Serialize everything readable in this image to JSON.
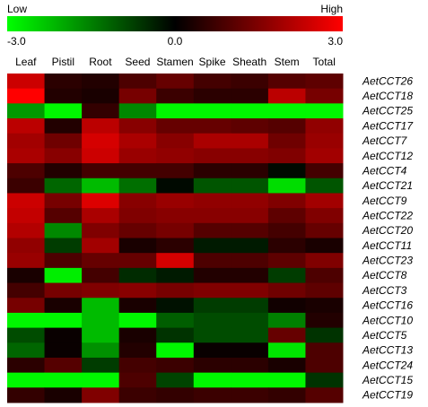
{
  "chart_data": {
    "type": "heatmap",
    "title": "",
    "legend": {
      "low_label": "Low",
      "high_label": "High",
      "ticks": [
        "-3.0",
        "0.0",
        "3.0"
      ],
      "range": [
        -3,
        3
      ],
      "colors": {
        "low": "#00ff00",
        "mid": "#000000",
        "high": "#ff0000"
      }
    },
    "columns": [
      "Leaf",
      "Pistil",
      "Root",
      "Seed",
      "Stamen",
      "Spike",
      "Sheath",
      "Stem",
      "Total"
    ],
    "col_spans": [
      1,
      1,
      1,
      1,
      1,
      1,
      1,
      1,
      1
    ],
    "rows": [
      "AetCCT26",
      "AetCCT18",
      "AetCCT25",
      "AetCCT17",
      "AetCCT7",
      "AetCCT12",
      "AetCCT4",
      "AetCCT21",
      "AetCCT9",
      "AetCCT22",
      "AetCCT20",
      "AetCCT11",
      "AetCCT23",
      "AetCCT8",
      "AetCCT3",
      "AetCCT16",
      "AetCCT10",
      "AetCCT5",
      "AetCCT13",
      "AetCCT24",
      "AetCCT15",
      "AetCCT19"
    ],
    "values": [
      [
        2.4,
        0.5,
        0.4,
        0.9,
        1.2,
        0.8,
        0.7,
        1.0,
        1.1
      ],
      [
        3.0,
        0.4,
        0.3,
        1.4,
        0.7,
        0.5,
        0.5,
        2.2,
        1.4
      ],
      [
        -1.8,
        -2.9,
        0.6,
        -1.6,
        -2.9,
        -2.9,
        -2.9,
        -2.9,
        -2.9
      ],
      [
        2.2,
        0.4,
        2.2,
        1.6,
        1.2,
        1.2,
        1.1,
        1.0,
        1.7
      ],
      [
        1.9,
        1.3,
        2.5,
        2.0,
        1.6,
        2.0,
        2.0,
        1.3,
        1.8
      ],
      [
        2.0,
        1.6,
        2.4,
        1.8,
        1.7,
        1.6,
        1.6,
        1.5,
        1.9
      ],
      [
        0.9,
        0.4,
        0.8,
        0.8,
        0.8,
        0.5,
        0.5,
        -0.1,
        0.8
      ],
      [
        0.7,
        -1.2,
        -2.2,
        -1.3,
        -0.1,
        -1.0,
        -1.0,
        -2.6,
        -1.0
      ],
      [
        2.4,
        1.4,
        2.6,
        1.6,
        1.8,
        1.7,
        1.7,
        1.5,
        1.9
      ],
      [
        2.3,
        1.0,
        2.0,
        1.5,
        1.6,
        1.6,
        1.6,
        1.1,
        1.5
      ],
      [
        2.1,
        -1.6,
        1.5,
        1.2,
        1.4,
        1.0,
        1.0,
        0.8,
        1.2
      ],
      [
        1.7,
        -0.7,
        1.9,
        0.3,
        0.5,
        -0.3,
        -0.3,
        0.5,
        0.3
      ],
      [
        1.8,
        0.9,
        1.2,
        1.2,
        2.5,
        0.9,
        0.9,
        1.1,
        1.5
      ],
      [
        0.3,
        -2.8,
        0.8,
        -0.5,
        -0.3,
        0.4,
        0.4,
        -0.7,
        0.9
      ],
      [
        0.8,
        1.4,
        1.5,
        1.6,
        1.4,
        1.5,
        1.5,
        1.3,
        1.1
      ],
      [
        1.4,
        0.3,
        -2.2,
        0.3,
        -0.2,
        -0.7,
        -0.7,
        0.2,
        0.3
      ],
      [
        -2.9,
        -2.9,
        -2.2,
        -2.9,
        -1.1,
        -0.9,
        -0.9,
        -1.5,
        0.4
      ],
      [
        -0.9,
        0.1,
        -2.2,
        0.3,
        -0.6,
        -0.9,
        -0.9,
        1.2,
        -0.6
      ],
      [
        -1.2,
        0.1,
        -1.7,
        0.4,
        -2.9,
        0.1,
        0.1,
        -2.7,
        0.9
      ],
      [
        0.5,
        1.0,
        -0.7,
        0.8,
        0.7,
        0.5,
        0.5,
        0.3,
        0.9
      ],
      [
        -2.9,
        -2.9,
        -2.9,
        0.9,
        -0.8,
        -2.9,
        -2.9,
        -2.9,
        -0.6
      ],
      [
        0.6,
        0.3,
        1.5,
        0.7,
        0.6,
        0.7,
        0.7,
        0.6,
        1.0
      ]
    ]
  }
}
